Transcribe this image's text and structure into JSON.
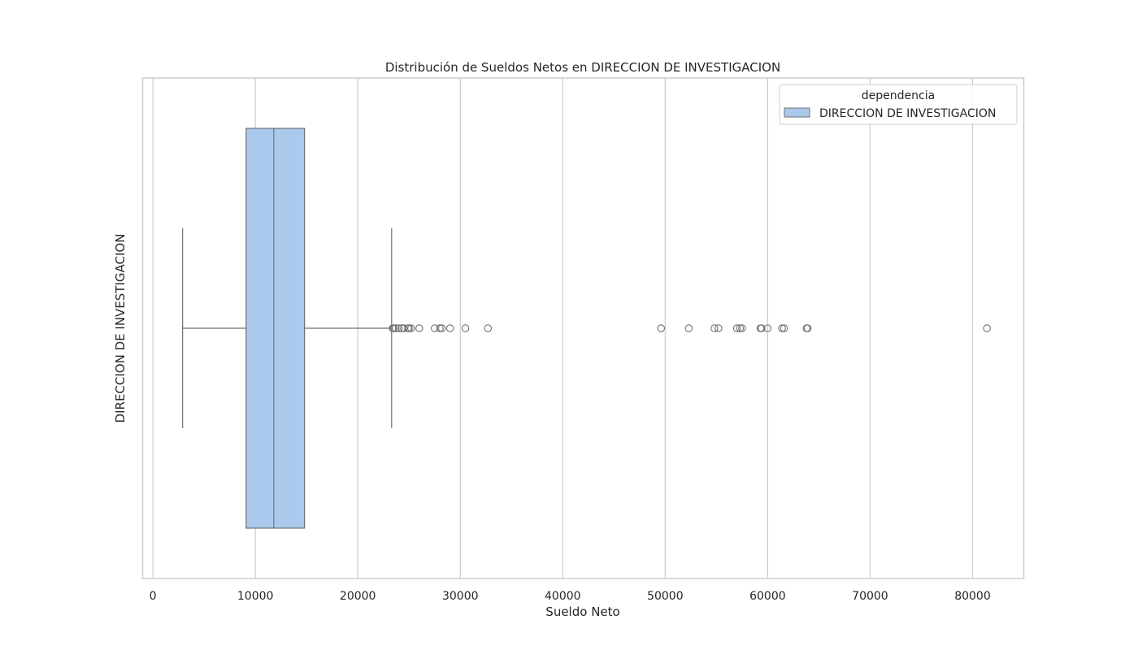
{
  "chart_data": {
    "type": "boxplot",
    "orientation": "horizontal",
    "title": "Distribución de Sueldos Netos en DIRECCION DE INVESTIGACION",
    "xlabel": "Sueldo Neto",
    "ylabel": "DIRECCION DE INVESTIGACION",
    "xlim": [
      -1000,
      85000
    ],
    "xticks": [
      0,
      10000,
      20000,
      30000,
      40000,
      50000,
      60000,
      70000,
      80000
    ],
    "grid": true,
    "legend": {
      "title": "dependencia",
      "placement": "upper right",
      "entries": [
        {
          "label": "DIRECCION DE INVESTIGACION",
          "color": "#abc9ec"
        }
      ]
    },
    "series": [
      {
        "name": "DIRECCION DE INVESTIGACION",
        "color": "#abc9ec",
        "edge_color": "#707070",
        "whisker_low": 2900,
        "q1": 9100,
        "median": 11800,
        "q3": 14800,
        "whisker_high": 23300,
        "outliers": [
          23400,
          23500,
          23700,
          24000,
          24300,
          24500,
          24900,
          25000,
          25200,
          26000,
          27500,
          28000,
          28200,
          29000,
          30500,
          32700,
          49600,
          52300,
          54800,
          55200,
          57000,
          57300,
          57500,
          59300,
          59400,
          60000,
          61400,
          61600,
          63800,
          63900,
          81400
        ]
      }
    ]
  }
}
